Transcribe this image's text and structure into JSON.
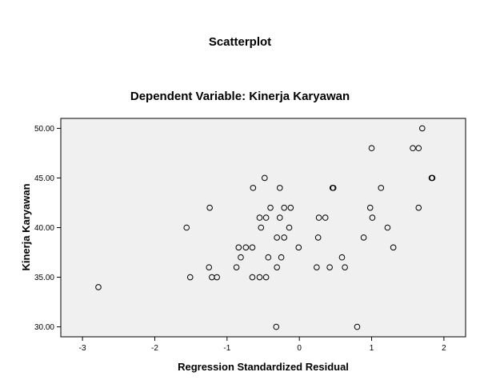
{
  "chart_data": {
    "type": "scatter",
    "title": "Scatterplot",
    "subtitle": "Dependent Variable: Kinerja Karyawan",
    "xlabel": "Regression Standardized Residual",
    "ylabel": "Kinerja Karyawan",
    "xlim": [
      -3.3,
      2.3
    ],
    "ylim": [
      29,
      51
    ],
    "xticks": [
      -3,
      -2,
      -1,
      0,
      1,
      2
    ],
    "xtick_labels": [
      "-3",
      "-2",
      "-1",
      "0",
      "1",
      "2"
    ],
    "yticks": [
      30,
      35,
      40,
      45,
      50
    ],
    "ytick_labels": [
      "30.00",
      "35.00",
      "40.00",
      "45.00",
      "50.00"
    ],
    "grid": false,
    "marker": "open-circle",
    "series": [
      {
        "points": [
          {
            "x": -2.78,
            "y": 34
          },
          {
            "x": -1.56,
            "y": 40
          },
          {
            "x": -1.51,
            "y": 35
          },
          {
            "x": -1.24,
            "y": 42
          },
          {
            "x": -1.25,
            "y": 36
          },
          {
            "x": -1.21,
            "y": 35
          },
          {
            "x": -1.14,
            "y": 35
          },
          {
            "x": -0.87,
            "y": 36
          },
          {
            "x": -0.84,
            "y": 38
          },
          {
            "x": -0.81,
            "y": 37
          },
          {
            "x": -0.74,
            "y": 38
          },
          {
            "x": -0.65,
            "y": 35
          },
          {
            "x": -0.65,
            "y": 38
          },
          {
            "x": -0.64,
            "y": 44
          },
          {
            "x": -0.55,
            "y": 41
          },
          {
            "x": -0.53,
            "y": 40
          },
          {
            "x": -0.55,
            "y": 35
          },
          {
            "x": -0.48,
            "y": 45
          },
          {
            "x": -0.46,
            "y": 41
          },
          {
            "x": -0.46,
            "y": 35
          },
          {
            "x": -0.43,
            "y": 37
          },
          {
            "x": -0.4,
            "y": 42
          },
          {
            "x": -0.31,
            "y": 39
          },
          {
            "x": -0.31,
            "y": 36
          },
          {
            "x": -0.32,
            "y": 30
          },
          {
            "x": -0.27,
            "y": 44
          },
          {
            "x": -0.27,
            "y": 41
          },
          {
            "x": -0.25,
            "y": 37
          },
          {
            "x": -0.21,
            "y": 39
          },
          {
            "x": -0.21,
            "y": 42
          },
          {
            "x": -0.14,
            "y": 40
          },
          {
            "x": -0.12,
            "y": 42
          },
          {
            "x": -0.01,
            "y": 38
          },
          {
            "x": 0.24,
            "y": 36
          },
          {
            "x": 0.26,
            "y": 39
          },
          {
            "x": 0.27,
            "y": 41
          },
          {
            "x": 0.36,
            "y": 41
          },
          {
            "x": 0.42,
            "y": 36
          },
          {
            "x": 0.46,
            "y": 44
          },
          {
            "x": 0.47,
            "y": 44
          },
          {
            "x": 0.59,
            "y": 37
          },
          {
            "x": 0.63,
            "y": 36
          },
          {
            "x": 0.8,
            "y": 30
          },
          {
            "x": 0.89,
            "y": 39
          },
          {
            "x": 0.98,
            "y": 42
          },
          {
            "x": 1.01,
            "y": 41
          },
          {
            "x": 1.0,
            "y": 48
          },
          {
            "x": 1.13,
            "y": 44
          },
          {
            "x": 1.22,
            "y": 40
          },
          {
            "x": 1.3,
            "y": 38
          },
          {
            "x": 1.57,
            "y": 48
          },
          {
            "x": 1.65,
            "y": 48
          },
          {
            "x": 1.65,
            "y": 42
          },
          {
            "x": 1.7,
            "y": 50
          },
          {
            "x": 1.83,
            "y": 45
          },
          {
            "x": 1.84,
            "y": 45
          }
        ]
      }
    ]
  }
}
